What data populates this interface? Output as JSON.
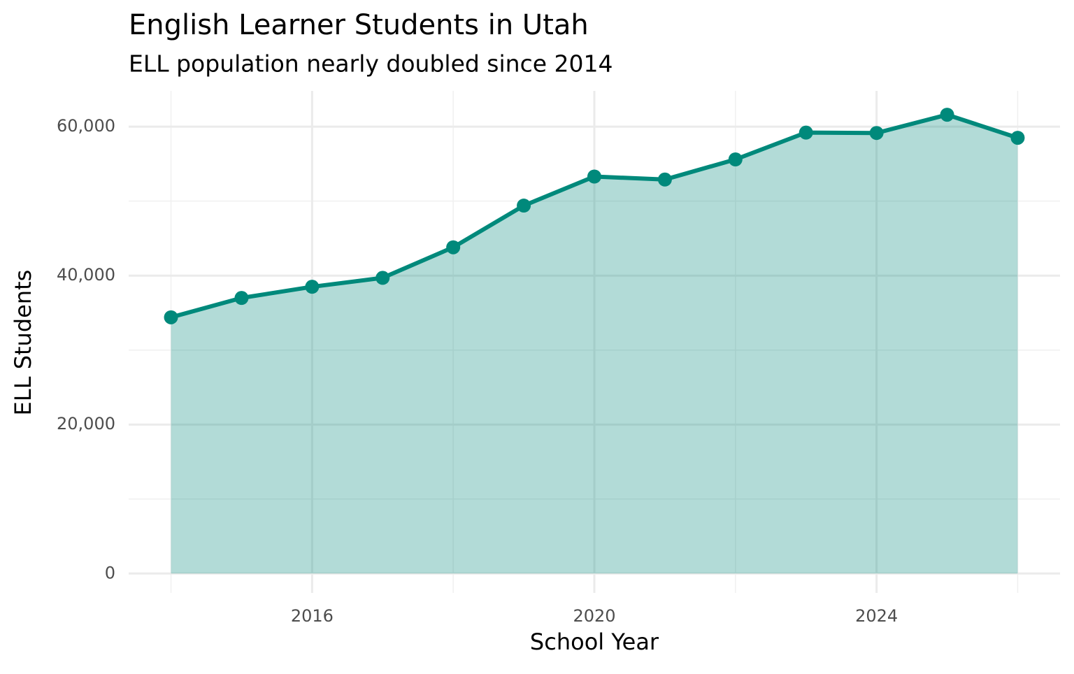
{
  "chart_data": {
    "type": "area-line",
    "title": "English Learner Students in Utah",
    "subtitle": "ELL population nearly doubled since 2014",
    "x_label": "School Year",
    "y_label": "ELL Students",
    "x": [
      2014,
      2015,
      2016,
      2017,
      2018,
      2019,
      2020,
      2021,
      2022,
      2023,
      2024,
      2025,
      2026
    ],
    "series": [
      {
        "name": "ELL Students",
        "color": "#00897b",
        "values": [
          34400,
          37000,
          38500,
          39700,
          43800,
          49400,
          53300,
          52900,
          55600,
          59200,
          59150,
          61600,
          58500
        ]
      }
    ],
    "xlim": [
      2013.4,
      2026.6
    ],
    "ylim": [
      -2600,
      64800
    ],
    "xticks": [
      2016,
      2020,
      2024
    ],
    "yticks": [
      0,
      {
        "value": 20000,
        "label": "20,000"
      },
      {
        "value": 40000,
        "label": "40,000"
      },
      {
        "value": 60000,
        "label": "60,000"
      }
    ],
    "x_minor_ticks": [
      2014,
      2018,
      2022,
      2026
    ],
    "y_minor_ticks": [
      10000,
      30000,
      50000
    ],
    "grid": true,
    "area_opacity": 0.3
  }
}
